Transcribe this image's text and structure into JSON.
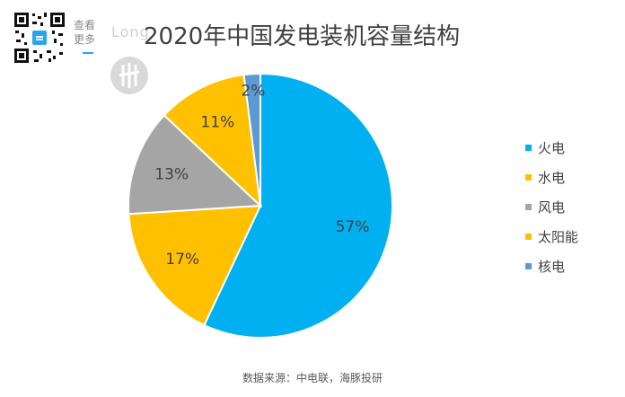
{
  "watermark": {
    "more_label": "查看更多",
    "logo_text": "Long"
  },
  "colors": {
    "thermal": "#00B0F0",
    "hydro": "#FFC000",
    "wind": "#A5A5A5",
    "solar": "#FFC000",
    "nuclear": "#5B9BD5",
    "accent": "#2AA6E8"
  },
  "chart_data": {
    "type": "pie",
    "title": "2020年中国发电装机容量结构",
    "source": "数据来源：中电联，海豚投研",
    "categories": [
      "火电",
      "水电",
      "风电",
      "太阳能",
      "核电"
    ],
    "values": [
      57,
      17,
      13,
      11,
      2
    ],
    "labels": [
      "57%",
      "17%",
      "13%",
      "11%",
      "2%"
    ],
    "legend_position": "right"
  }
}
